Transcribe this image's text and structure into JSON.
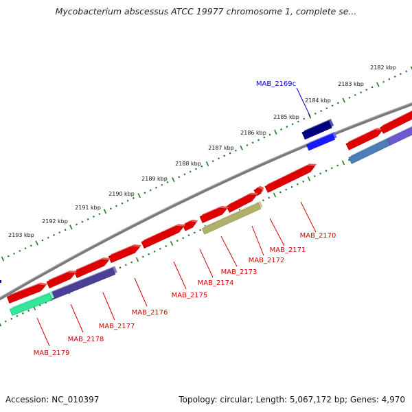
{
  "title": "Mycobacterium abscessus ATCC 19977 chromosome 1, complete se...",
  "footer": {
    "accession": "Accession: NC_010397",
    "summary": "Topology: circular; Length: 5,067,172 bp; Genes: 4,970"
  },
  "colors": {
    "backbone": "#7a7a7a",
    "ruler_dots": "#1a7a1a",
    "gene_forward": "#e00000",
    "gene_label_red": "#d40000",
    "gene_label_blue": "#0000c8",
    "cds_navy": "#000080",
    "cds_blue": "#1a1aff",
    "cds_steel": "#4c7fb8",
    "cds_purple": "#4a3f99",
    "cds_olive": "#b3b06a",
    "cds_green": "#33e699"
  },
  "ruler": {
    "ticks": [
      "2182 kbp",
      "2183 kbp",
      "2184 kbp",
      "2185 kbp",
      "2186 kbp",
      "2187 kbp",
      "2188 kbp",
      "2189 kbp",
      "2190 kbp",
      "2191 kbp",
      "2192 kbp",
      "2193 kbp"
    ]
  },
  "genes": [
    {
      "label": "MAB_2169c",
      "color": "blue"
    },
    {
      "label": "MAB_2170",
      "color": "red"
    },
    {
      "label": "MAB_2171",
      "color": "red"
    },
    {
      "label": "MAB_2172",
      "color": "red"
    },
    {
      "label": "MAB_2173",
      "color": "red"
    },
    {
      "label": "MAB_2174",
      "color": "red"
    },
    {
      "label": "MAB_2175",
      "color": "red"
    },
    {
      "label": "MAB_2176",
      "color": "red"
    },
    {
      "label": "MAB_2177",
      "color": "red"
    },
    {
      "label": "MAB_2178",
      "color": "red"
    },
    {
      "label": "MAB_2179",
      "color": "red"
    }
  ]
}
